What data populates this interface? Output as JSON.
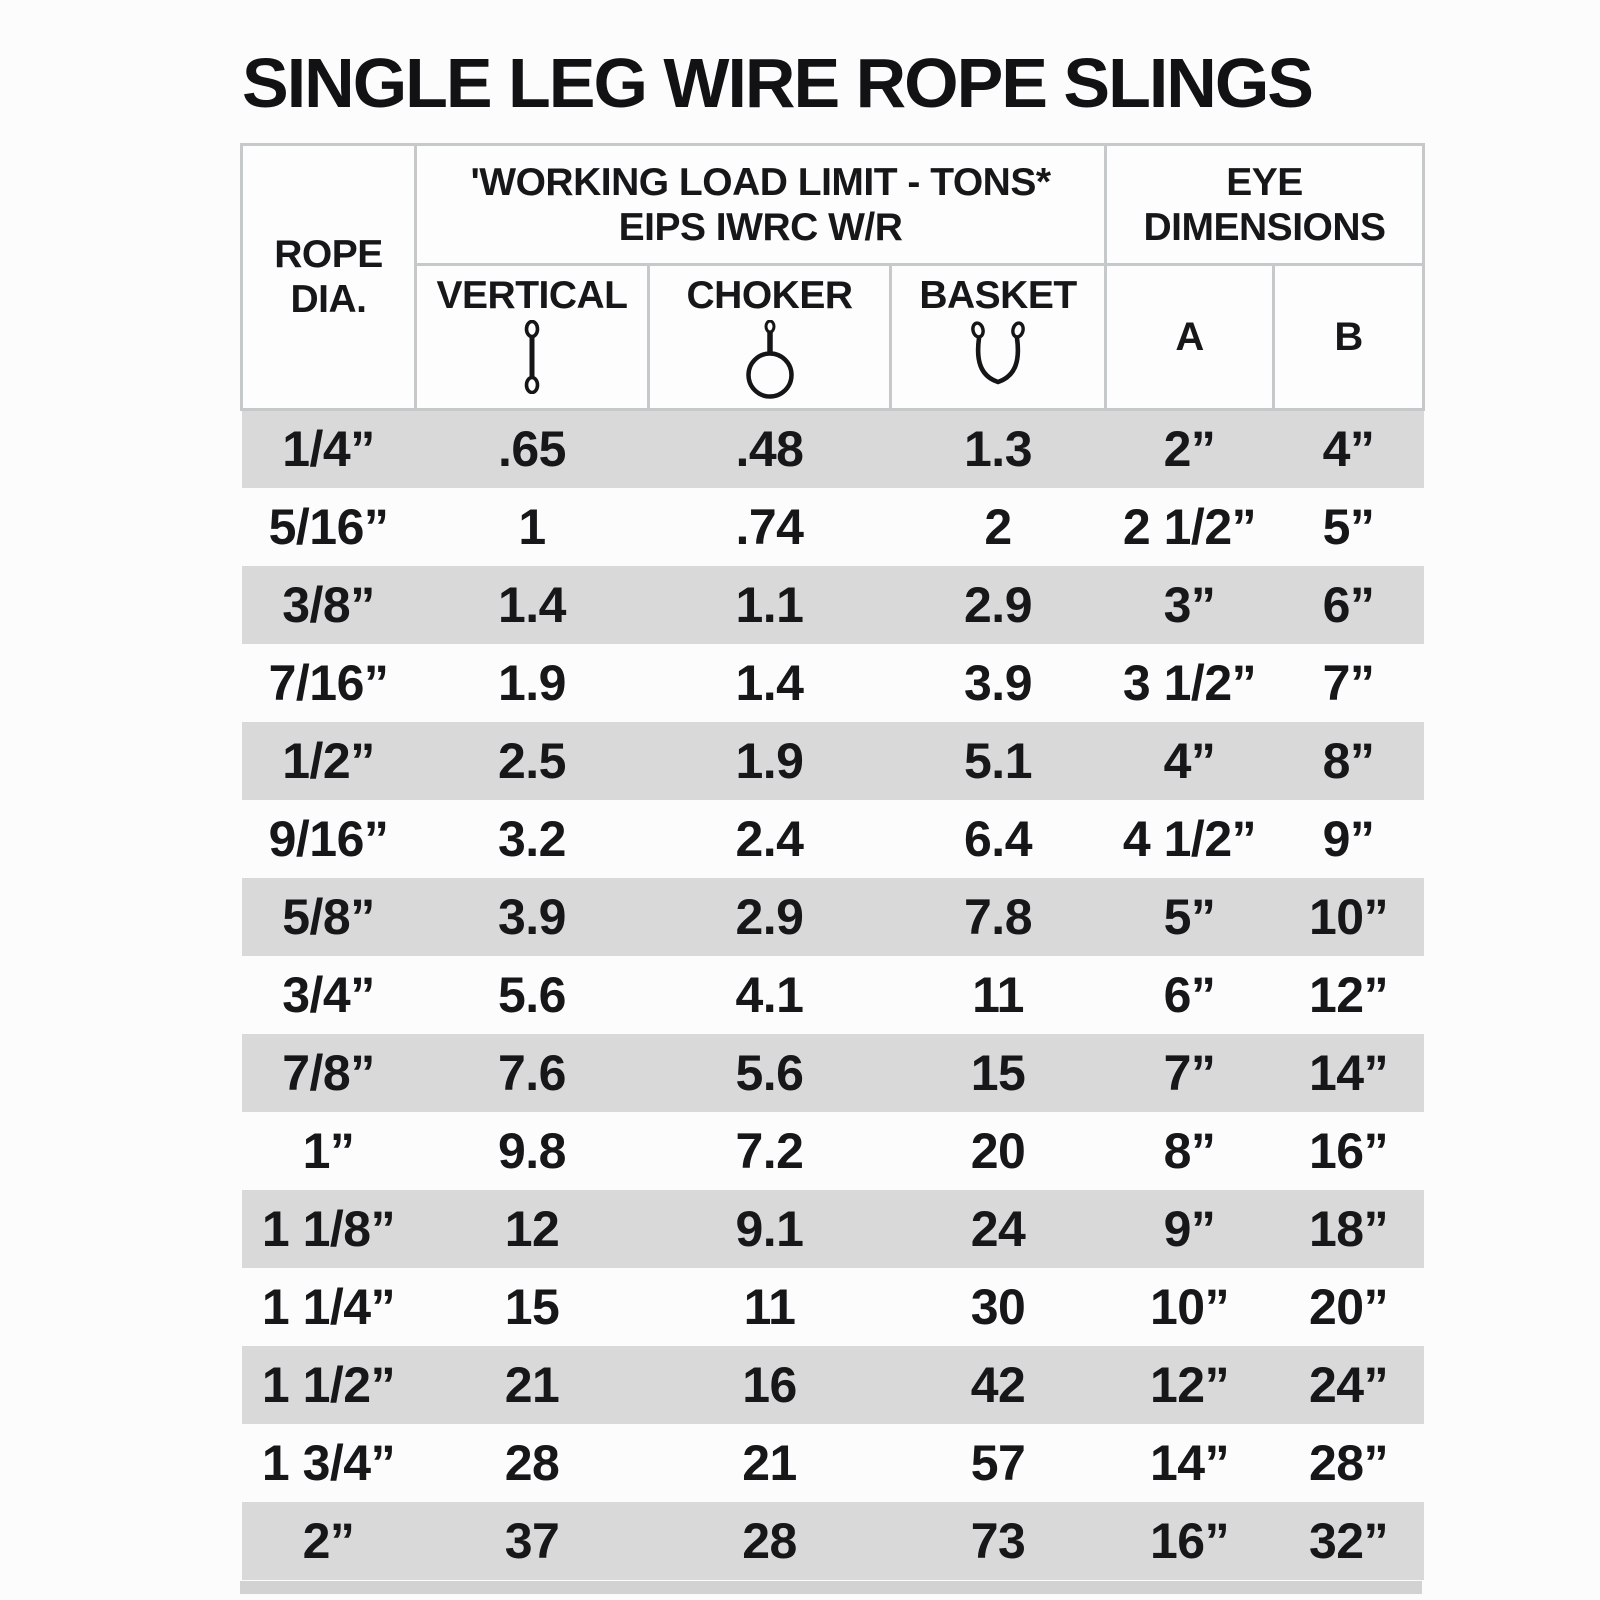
{
  "title": "SINGLE LEG WIRE ROPE SLINGS",
  "colors": {
    "row_shade": "#d9d9d9",
    "border": "#c6c9ca",
    "text": "#17171a",
    "strip": "#d2d2d2",
    "page_bg": "#fcfcfc"
  },
  "table": {
    "header": {
      "rope_dia_line1": "ROPE",
      "rope_dia_line2": "DIA.",
      "wll_line1": "'WORKING LOAD LIMIT - TONS*",
      "wll_line2": "EIPS IWRC W/R",
      "eye_line1": "EYE",
      "eye_line2": "DIMENSIONS",
      "col_vertical": "VERTICAL",
      "col_choker": "CHOKER",
      "col_basket": "BASKET",
      "col_a": "A",
      "col_b": "B"
    },
    "icons": {
      "vertical": "vertical-sling-icon",
      "choker": "choker-sling-icon",
      "basket": "basket-sling-icon"
    },
    "rows": [
      {
        "rope_dia": "1/4”",
        "vertical": ".65",
        "choker": ".48",
        "basket": "1.3",
        "eye_a": "2”",
        "eye_b": "4”"
      },
      {
        "rope_dia": "5/16”",
        "vertical": "1",
        "choker": ".74",
        "basket": "2",
        "eye_a": "2 1/2”",
        "eye_b": "5”"
      },
      {
        "rope_dia": "3/8”",
        "vertical": "1.4",
        "choker": "1.1",
        "basket": "2.9",
        "eye_a": "3”",
        "eye_b": "6”"
      },
      {
        "rope_dia": "7/16”",
        "vertical": "1.9",
        "choker": "1.4",
        "basket": "3.9",
        "eye_a": "3 1/2”",
        "eye_b": "7”"
      },
      {
        "rope_dia": "1/2”",
        "vertical": "2.5",
        "choker": "1.9",
        "basket": "5.1",
        "eye_a": "4”",
        "eye_b": "8”"
      },
      {
        "rope_dia": "9/16”",
        "vertical": "3.2",
        "choker": "2.4",
        "basket": "6.4",
        "eye_a": "4 1/2”",
        "eye_b": "9”"
      },
      {
        "rope_dia": "5/8”",
        "vertical": "3.9",
        "choker": "2.9",
        "basket": "7.8",
        "eye_a": "5”",
        "eye_b": "10”"
      },
      {
        "rope_dia": "3/4”",
        "vertical": "5.6",
        "choker": "4.1",
        "basket": "11",
        "eye_a": "6”",
        "eye_b": "12”"
      },
      {
        "rope_dia": "7/8”",
        "vertical": "7.6",
        "choker": "5.6",
        "basket": "15",
        "eye_a": "7”",
        "eye_b": "14”"
      },
      {
        "rope_dia": "1”",
        "vertical": "9.8",
        "choker": "7.2",
        "basket": "20",
        "eye_a": "8”",
        "eye_b": "16”"
      },
      {
        "rope_dia": "1 1/8”",
        "vertical": "12",
        "choker": "9.1",
        "basket": "24",
        "eye_a": "9”",
        "eye_b": "18”"
      },
      {
        "rope_dia": "1 1/4”",
        "vertical": "15",
        "choker": "11",
        "basket": "30",
        "eye_a": "10”",
        "eye_b": "20”"
      },
      {
        "rope_dia": "1 1/2”",
        "vertical": "21",
        "choker": "16",
        "basket": "42",
        "eye_a": "12”",
        "eye_b": "24”"
      },
      {
        "rope_dia": "1 3/4”",
        "vertical": "28",
        "choker": "21",
        "basket": "57",
        "eye_a": "14”",
        "eye_b": "28”"
      },
      {
        "rope_dia": "2”",
        "vertical": "37",
        "choker": "28",
        "basket": "73",
        "eye_a": "16”",
        "eye_b": "32”"
      }
    ]
  }
}
